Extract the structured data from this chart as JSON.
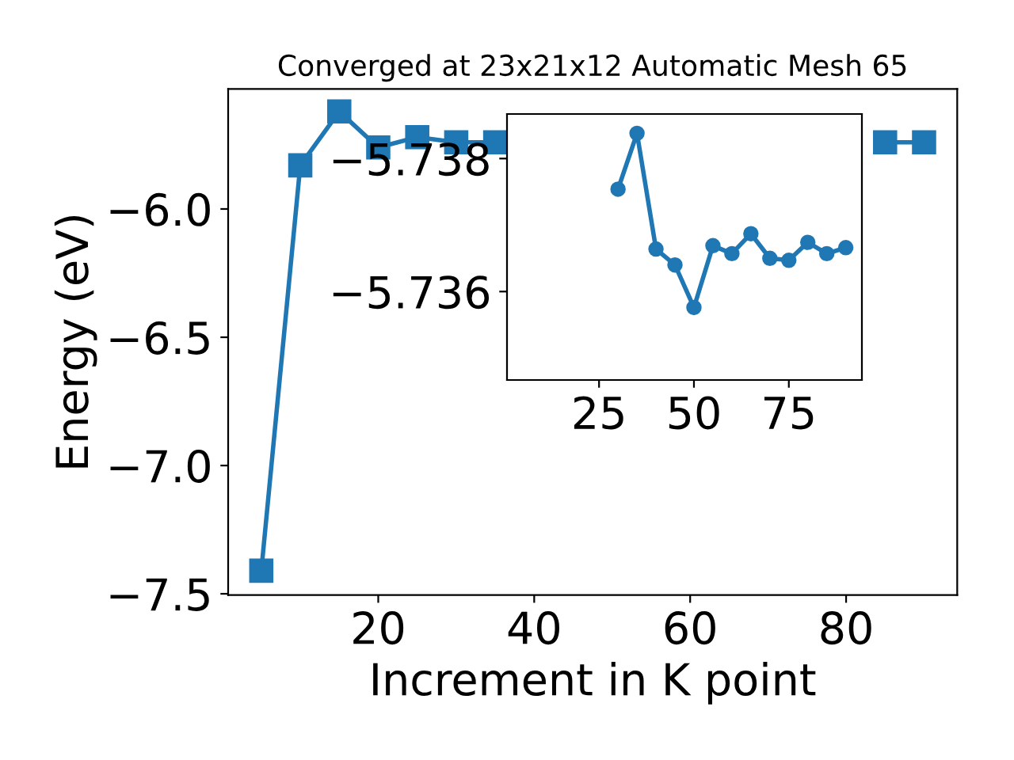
{
  "chart_data": [
    {
      "type": "line",
      "title": "Converged at 23x21x12 Automatic Mesh 65",
      "xlabel": "Increment in K point",
      "ylabel": "Energy (eV)",
      "x": [
        5,
        10,
        15,
        20,
        25,
        30,
        35,
        40,
        45,
        50,
        55,
        60,
        65,
        70,
        75,
        80,
        85,
        90
      ],
      "series": [
        {
          "color": "#1f77b4",
          "values": [
            -7.41,
            -5.83,
            -5.62,
            -5.76,
            -5.72,
            -5.74,
            -5.74,
            null,
            null,
            null,
            null,
            null,
            null,
            null,
            null,
            null,
            -5.74,
            -5.74
          ]
        }
      ],
      "marker": "square",
      "line_style": "solid",
      "grid": false,
      "legend": false,
      "xlim": [
        0.75,
        94.25
      ],
      "xticks": [
        20,
        40,
        60,
        80
      ],
      "ylim": [
        -7.505,
        -5.532
      ],
      "yticks": [
        {
          "value": -7.5,
          "label": "−7.5"
        },
        {
          "value": -7.0,
          "label": "−7.0"
        },
        {
          "value": -6.5,
          "label": "−6.5"
        },
        {
          "value": -6.0,
          "label": "−6.0"
        }
      ]
    },
    {
      "type": "line",
      "x": [
        30,
        35,
        40,
        45,
        50,
        55,
        60,
        65,
        70,
        75,
        80,
        85,
        90
      ],
      "series": [
        {
          "color": "#1f77b4",
          "values": [
            -5.73754,
            -5.73838,
            -5.73664,
            -5.7364,
            -5.73576,
            -5.73669,
            -5.73657,
            -5.73687,
            -5.7365,
            -5.73647,
            -5.73674,
            -5.73657,
            -5.73666
          ]
        }
      ],
      "marker": "circle",
      "line_style": "solid",
      "grid": false,
      "legend": false,
      "xlim": [
        0.75,
        94.25
      ],
      "xticks": [
        25,
        50,
        75
      ],
      "ylim": [
        -5.73467,
        -5.73867
      ],
      "yticks": [
        {
          "value": -5.738,
          "label": "−5.738"
        },
        {
          "value": -5.736,
          "label": "−5.736"
        }
      ]
    }
  ]
}
